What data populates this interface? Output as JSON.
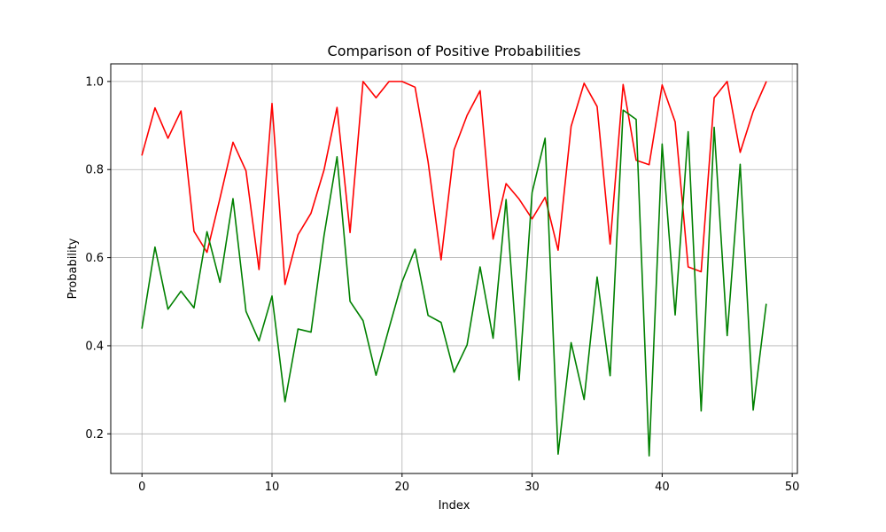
{
  "chart_data": {
    "type": "line",
    "title": "Comparison of Positive Probabilities",
    "xlabel": "Index",
    "ylabel": "Probability",
    "xlim": [
      -2.4,
      50.4
    ],
    "ylim": [
      0.11,
      1.04
    ],
    "xticks": [
      0,
      10,
      20,
      30,
      40,
      50
    ],
    "yticks": [
      0.2,
      0.4,
      0.6,
      0.8,
      1.0
    ],
    "xtick_labels": [
      "0",
      "10",
      "20",
      "30",
      "40",
      "50"
    ],
    "ytick_labels": [
      "0.2",
      "0.4",
      "0.6",
      "0.8",
      "1.0"
    ],
    "grid": true,
    "legend": "none",
    "x": [
      0,
      1,
      2,
      3,
      4,
      5,
      6,
      7,
      8,
      9,
      10,
      11,
      12,
      13,
      14,
      15,
      16,
      17,
      18,
      19,
      20,
      21,
      22,
      23,
      24,
      25,
      26,
      27,
      28,
      29,
      30,
      31,
      32,
      33,
      34,
      35,
      36,
      37,
      38,
      39,
      40,
      41,
      42,
      43,
      44,
      45,
      46,
      47,
      48
    ],
    "series": [
      {
        "color": "#ff0000",
        "values": [
          0.833,
          0.94,
          0.871,
          0.933,
          0.66,
          0.612,
          0.735,
          0.862,
          0.797,
          0.573,
          0.95,
          0.539,
          0.652,
          0.701,
          0.799,
          0.941,
          0.657,
          1.0,
          0.963,
          1.0,
          1.0,
          0.987,
          0.818,
          0.595,
          0.845,
          0.923,
          0.979,
          0.642,
          0.768,
          0.733,
          0.688,
          0.737,
          0.617,
          0.898,
          0.996,
          0.943,
          0.631,
          0.993,
          0.821,
          0.811,
          0.992,
          0.908,
          0.579,
          0.568,
          0.963,
          1.0,
          0.839,
          0.932,
          0.999
        ]
      },
      {
        "color": "#008000",
        "values": [
          0.44,
          0.624,
          0.483,
          0.524,
          0.486,
          0.659,
          0.544,
          0.734,
          0.478,
          0.411,
          0.513,
          0.273,
          0.438,
          0.431,
          0.65,
          0.829,
          0.501,
          0.457,
          0.333,
          0.44,
          0.545,
          0.619,
          0.469,
          0.453,
          0.34,
          0.402,
          0.579,
          0.417,
          0.732,
          0.322,
          0.748,
          0.871,
          0.154,
          0.407,
          0.278,
          0.556,
          0.332,
          0.935,
          0.914,
          0.15,
          0.858,
          0.47,
          0.886,
          0.252,
          0.896,
          0.423,
          0.812,
          0.254,
          0.494
        ]
      }
    ]
  }
}
